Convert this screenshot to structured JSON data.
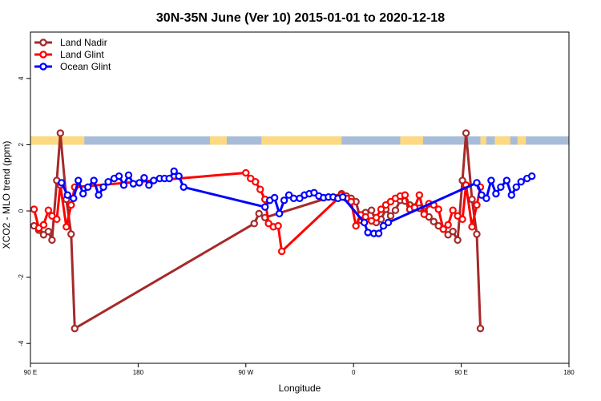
{
  "chart_data": {
    "type": "line",
    "title": "30N-35N June (Ver 10)   2015-01-01 to 2020-12-18",
    "xlabel": "Longitude",
    "ylabel": "XCO2 - MLO trend (ppm)",
    "xlim": [
      90,
      540
    ],
    "ylim": [
      -4.6,
      5.4
    ],
    "x_ticks": [
      {
        "value": 90,
        "label": "90 E"
      },
      {
        "value": 180,
        "label": "180"
      },
      {
        "value": 270,
        "label": "90 W"
      },
      {
        "value": 360,
        "label": "0"
      },
      {
        "value": 450,
        "label": "90 E"
      },
      {
        "value": 540,
        "label": "180"
      }
    ],
    "y_ticks": [
      {
        "value": -4,
        "label": "-4"
      },
      {
        "value": -2,
        "label": "-2"
      },
      {
        "value": 0,
        "label": "0"
      },
      {
        "value": 2,
        "label": "2"
      },
      {
        "value": 4,
        "label": "4"
      }
    ],
    "legend_position": "top-left",
    "grid": false,
    "surface_band": {
      "y_range": [
        2.0,
        2.25
      ],
      "land_color": "#FFD980",
      "ocean_color": "#A7BCD9",
      "land_segments": [
        [
          90,
          135
        ],
        [
          240,
          254
        ],
        [
          283,
          350
        ],
        [
          399,
          418
        ],
        [
          466,
          471
        ],
        [
          478,
          491
        ],
        [
          497,
          504
        ]
      ]
    },
    "series": [
      {
        "name": "Land Nadir",
        "color": "#A52A2A",
        "points": [
          [
            93,
            -0.45
          ],
          [
            97,
            -0.58
          ],
          [
            101,
            -0.72
          ],
          [
            105,
            -0.62
          ],
          [
            108,
            -0.88
          ],
          [
            112,
            0.92
          ],
          [
            115,
            2.35
          ],
          [
            120,
            0.35
          ],
          [
            124,
            -0.7
          ],
          [
            127,
            -3.55
          ],
          [
            277,
            -0.38
          ],
          [
            281,
            -0.08
          ],
          [
            286,
            -0.2
          ],
          [
            350,
            0.52
          ],
          [
            354,
            0.45
          ],
          [
            358,
            0.38
          ],
          [
            362,
            0.28
          ],
          [
            366,
            -0.28
          ],
          [
            370,
            -0.05
          ],
          [
            375,
            0.02
          ],
          [
            379,
            -0.35
          ],
          [
            383,
            -0.25
          ],
          [
            387,
            0.05
          ],
          [
            391,
            -0.15
          ],
          [
            395,
            0.02
          ],
          [
            399,
            0.32
          ],
          [
            403,
            0.3
          ],
          [
            407,
            0.18
          ],
          [
            411,
            0.12
          ],
          [
            415,
            0.08
          ],
          [
            419,
            -0.02
          ],
          [
            423,
            -0.18
          ],
          [
            427,
            -0.32
          ],
          [
            431,
            -0.45
          ],
          [
            435,
            -0.55
          ],
          [
            439,
            -0.72
          ],
          [
            443,
            -0.62
          ],
          [
            447,
            -0.88
          ],
          [
            451,
            0.92
          ],
          [
            454,
            2.35
          ],
          [
            459,
            0.35
          ],
          [
            463,
            -0.7
          ],
          [
            466,
            -3.55
          ]
        ]
      },
      {
        "name": "Land Glint",
        "color": "#FF0000",
        "points": [
          [
            93,
            0.05
          ],
          [
            97,
            -0.52
          ],
          [
            101,
            -0.42
          ],
          [
            105,
            0.02
          ],
          [
            108,
            -0.15
          ],
          [
            112,
            -0.25
          ],
          [
            115,
            0.78
          ],
          [
            120,
            -0.48
          ],
          [
            124,
            0.18
          ],
          [
            127,
            0.72
          ],
          [
            270,
            1.15
          ],
          [
            274,
            0.98
          ],
          [
            278,
            0.88
          ],
          [
            282,
            0.65
          ],
          [
            286,
            0.35
          ],
          [
            289,
            -0.38
          ],
          [
            293,
            -0.48
          ],
          [
            297,
            -0.45
          ],
          [
            300,
            -1.22
          ],
          [
            350,
            0.48
          ],
          [
            354,
            0.38
          ],
          [
            358,
            0.28
          ],
          [
            362,
            -0.45
          ],
          [
            366,
            -0.12
          ],
          [
            370,
            -0.18
          ],
          [
            375,
            -0.3
          ],
          [
            379,
            -0.2
          ],
          [
            383,
            0.05
          ],
          [
            387,
            0.18
          ],
          [
            391,
            0.28
          ],
          [
            395,
            0.38
          ],
          [
            399,
            0.45
          ],
          [
            403,
            0.48
          ],
          [
            407,
            0.05
          ],
          [
            411,
            0.1
          ],
          [
            415,
            0.48
          ],
          [
            419,
            -0.1
          ],
          [
            423,
            0.22
          ],
          [
            427,
            0.18
          ],
          [
            431,
            0.05
          ],
          [
            435,
            -0.55
          ],
          [
            439,
            -0.42
          ],
          [
            443,
            0.02
          ],
          [
            447,
            -0.15
          ],
          [
            451,
            -0.25
          ],
          [
            454,
            0.78
          ],
          [
            459,
            -0.48
          ],
          [
            463,
            0.18
          ],
          [
            466,
            0.72
          ]
        ]
      },
      {
        "name": "Ocean Glint",
        "color": "#0000FF",
        "points": [
          [
            116,
            0.85
          ],
          [
            121,
            0.48
          ],
          [
            126,
            0.38
          ],
          [
            130,
            0.92
          ],
          [
            134,
            0.52
          ],
          [
            138,
            0.72
          ],
          [
            143,
            0.92
          ],
          [
            147,
            0.48
          ],
          [
            151,
            0.72
          ],
          [
            155,
            0.88
          ],
          [
            160,
            0.98
          ],
          [
            164,
            1.05
          ],
          [
            168,
            0.78
          ],
          [
            172,
            1.08
          ],
          [
            176,
            0.82
          ],
          [
            181,
            0.85
          ],
          [
            185,
            1.0
          ],
          [
            189,
            0.78
          ],
          [
            193,
            0.92
          ],
          [
            198,
            0.98
          ],
          [
            202,
            0.98
          ],
          [
            206,
            0.98
          ],
          [
            210,
            1.2
          ],
          [
            214,
            1.05
          ],
          [
            218,
            0.72
          ],
          [
            286,
            0.12
          ],
          [
            290,
            0.32
          ],
          [
            294,
            0.4
          ],
          [
            298,
            -0.08
          ],
          [
            302,
            0.32
          ],
          [
            306,
            0.48
          ],
          [
            310,
            0.38
          ],
          [
            315,
            0.38
          ],
          [
            319,
            0.48
          ],
          [
            323,
            0.52
          ],
          [
            327,
            0.55
          ],
          [
            331,
            0.45
          ],
          [
            335,
            0.4
          ],
          [
            339,
            0.42
          ],
          [
            343,
            0.42
          ],
          [
            347,
            0.38
          ],
          [
            351,
            0.42
          ],
          [
            369,
            -0.35
          ],
          [
            372,
            -0.65
          ],
          [
            377,
            -0.68
          ],
          [
            381,
            -0.68
          ],
          [
            385,
            -0.45
          ],
          [
            389,
            -0.35
          ],
          [
            463,
            0.85
          ],
          [
            467,
            0.48
          ],
          [
            471,
            0.38
          ],
          [
            475,
            0.92
          ],
          [
            479,
            0.52
          ],
          [
            483,
            0.72
          ],
          [
            488,
            0.92
          ],
          [
            492,
            0.48
          ],
          [
            496,
            0.72
          ],
          [
            500,
            0.88
          ],
          [
            505,
            0.98
          ],
          [
            509,
            1.05
          ]
        ]
      }
    ]
  }
}
